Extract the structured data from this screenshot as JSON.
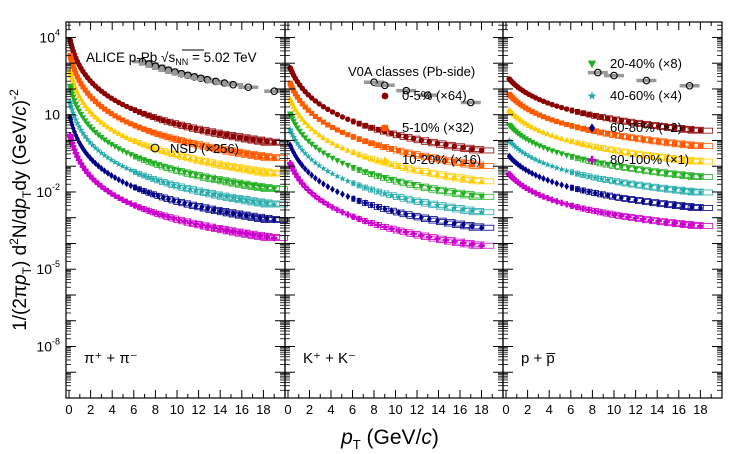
{
  "chart_data": {
    "type": "scatter",
    "y_scale": "log",
    "ylim_exponent": [
      -10,
      4.6
    ],
    "xlim": [
      0,
      20
    ],
    "x_ticks": [
      "0",
      "2",
      "4",
      "6",
      "8",
      "10",
      "12",
      "14",
      "16",
      "18"
    ],
    "y_ticks": [
      {
        "exp": 4,
        "label": "10",
        "sup": "4"
      },
      {
        "exp": 1,
        "label": "10",
        "sup": ""
      },
      {
        "exp": -2,
        "label": "10",
        "sup": "-2"
      },
      {
        "exp": -5,
        "label": "10",
        "sup": "-5"
      },
      {
        "exp": -8,
        "label": "10",
        "sup": "-8"
      }
    ],
    "ylabel": {
      "pre": "1/(2π",
      "p": "p",
      "sub": "T",
      "mid": ") d",
      "sup": "2",
      "rest": "N/d",
      "p2": "p",
      "sub2": "T",
      "dy": "dy (GeV/",
      "c": "c",
      "close": ")",
      "sup2": "-2"
    },
    "xlabel": {
      "p": "p",
      "sub": "T",
      "rest": " (GeV/",
      "c": "c",
      "close": ")"
    },
    "experiment": {
      "prefix": "ALICE p-Pb ",
      "sqrt": "√",
      "s": "s",
      "sub": "NN",
      "value": " = 5.02 TeV"
    },
    "legend_title": "V0A classes (Pb-side)",
    "panels": [
      {
        "id": "pion",
        "label": "π⁺ + π⁻",
        "x_first": 0.1,
        "x_last": 19,
        "n_points": 52,
        "nsd_extra": 2.0,
        "nsd_x": [
          6.8,
          7.4,
          8.0,
          8.6,
          9.2,
          9.8,
          10.4,
          11.0,
          11.6,
          12.2,
          12.8,
          13.6,
          14.4,
          15.2,
          16.6,
          19.0
        ]
      },
      {
        "id": "kaon",
        "label": "K⁺ + K⁻",
        "x_first": 0.2,
        "x_last": 18,
        "n_points": 38,
        "nsd_extra": 1.8,
        "nsd_x": [
          8.0,
          9.0,
          11.0,
          13.0,
          17.0
        ]
      },
      {
        "id": "proton",
        "label": "p + p̅",
        "x_first": 0.3,
        "x_last": 18,
        "n_points": 40,
        "nsd_extra": 1.7,
        "nsd_x": [
          8.5,
          10.0,
          13.0,
          17.0
        ]
      }
    ],
    "series": [
      {
        "name": "0-5% (×64)",
        "marker": "circle",
        "color": "#8b0000",
        "log_offset": 0.0
      },
      {
        "name": "5-10% (×32)",
        "marker": "square",
        "color": "#ff5a00",
        "log_offset": -0.6
      },
      {
        "name": "10-20% (×16)",
        "marker": "triangle-up",
        "color": "#ffcc00",
        "log_offset": -1.2
      },
      {
        "name": "20-40% (×8)",
        "marker": "triangle-down",
        "color": "#22b022",
        "log_offset": -1.8
      },
      {
        "name": "40-60% (×4)",
        "marker": "star",
        "color": "#22aaaa",
        "log_offset": -2.4
      },
      {
        "name": "60-80% (×2)",
        "marker": "diamond",
        "color": "#000088",
        "log_offset": -3.0
      },
      {
        "name": "80-100% (×1)",
        "marker": "cross",
        "color": "#cc00cc",
        "log_offset": -3.7
      }
    ],
    "nsd": {
      "name": "NSD (×256)",
      "marker": "open-circle",
      "color": "#000000"
    },
    "panel_curves": {
      "pion": {
        "a": 4.1,
        "b": 2.7,
        "c": 0.55
      },
      "kaon": {
        "a": 3.05,
        "b": 2.6,
        "c": 0.9
      },
      "proton": {
        "a": 2.55,
        "b": 1.9,
        "c": 1.4
      }
    }
  }
}
